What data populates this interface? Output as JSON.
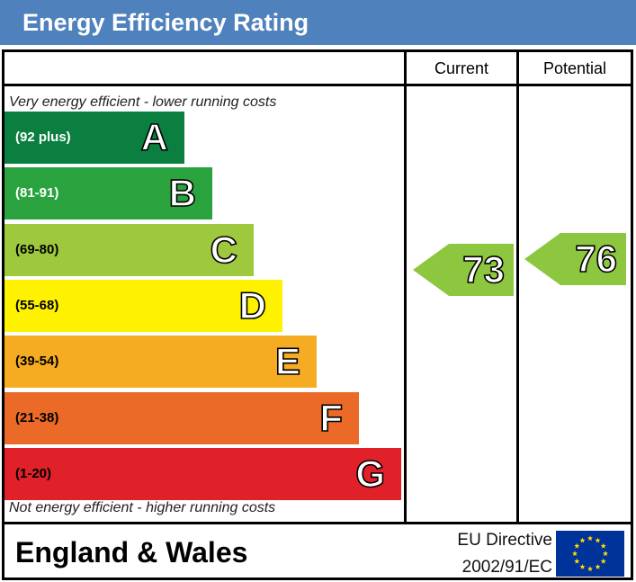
{
  "header": {
    "title": "Energy Efficiency Rating"
  },
  "columns": {
    "current_label": "Current",
    "potential_label": "Potential"
  },
  "captions": {
    "top": "Very energy efficient - lower running costs",
    "bottom": "Not energy efficient - higher running costs"
  },
  "chart_data": {
    "type": "bar",
    "title": "Energy Efficiency Rating",
    "categories": [
      "A",
      "B",
      "C",
      "D",
      "E",
      "F",
      "G"
    ],
    "ranges": [
      "(92 plus)",
      "(81-91)",
      "(69-80)",
      "(55-68)",
      "(39-54)",
      "(21-38)",
      "(1-20)"
    ],
    "colors": [
      "#008054",
      "#19b459",
      "#8dce46",
      "#ffd500",
      "#fcaa65",
      "#ef8023",
      "#e9153b"
    ],
    "current": {
      "label": "Current",
      "value": 73,
      "band": "C"
    },
    "potential": {
      "label": "Potential",
      "value": 76,
      "band": "C"
    }
  },
  "bands": [
    {
      "letter": "A",
      "range": "(92 plus)",
      "color": "#0b7f3f",
      "text_color": "#ffffff"
    },
    {
      "letter": "B",
      "range": "(81-91)",
      "color": "#2aa33f",
      "text_color": "#ffffff"
    },
    {
      "letter": "C",
      "range": "(69-80)",
      "color": "#9ec93e",
      "text_color": "#000000"
    },
    {
      "letter": "D",
      "range": "(55-68)",
      "color": "#fff200",
      "text_color": "#000000"
    },
    {
      "letter": "E",
      "range": "(39-54)",
      "color": "#f5ac23",
      "text_color": "#000000"
    },
    {
      "letter": "F",
      "range": "(21-38)",
      "color": "#eb6a27",
      "text_color": "#000000"
    },
    {
      "letter": "G",
      "range": "(1-20)",
      "color": "#e02129",
      "text_color": "#000000"
    }
  ],
  "ratings": {
    "current": {
      "value": "73",
      "color": "#8dc63f"
    },
    "potential": {
      "value": "76",
      "color": "#8dc63f"
    }
  },
  "footer": {
    "region": "England & Wales",
    "directive_line1": "EU Directive",
    "directive_line2": "2002/91/EC",
    "flag_color": "#003399",
    "star_color": "#ffdd00"
  }
}
